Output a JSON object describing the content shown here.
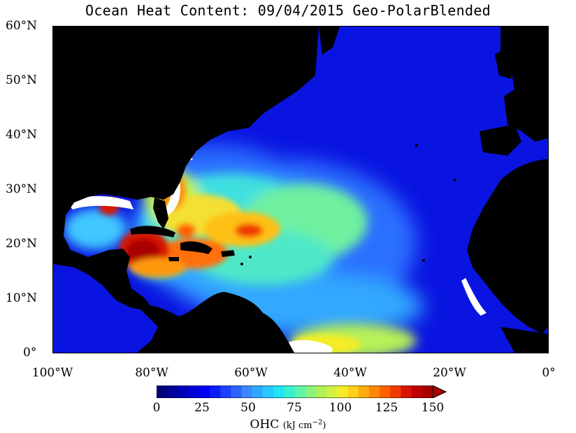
{
  "title": "Ocean Heat Content: 09/04/2015 Geo-PolarBlended",
  "lat_ticks": [
    "60°N",
    "50°N",
    "40°N",
    "30°N",
    "20°N",
    "10°N",
    "0°"
  ],
  "lon_ticks": [
    "100°W",
    "80°W",
    "60°W",
    "40°W",
    "20°W",
    "0°"
  ],
  "colorbar": {
    "ticks": [
      "0",
      "25",
      "50",
      "75",
      "100",
      "125",
      "150"
    ],
    "label": "OHC",
    "units_prefix": "(kJ cm",
    "units_exp": "−2",
    "units_suffix": ")",
    "range": [
      0,
      150
    ],
    "colors": [
      "#00007a",
      "#000098",
      "#0000b8",
      "#0000d8",
      "#0000f4",
      "#0c1cff",
      "#1c40ff",
      "#2c64ff",
      "#3c88ff",
      "#30a8ff",
      "#28c8ff",
      "#20e4f8",
      "#38f0d0",
      "#60f4a8",
      "#88f480",
      "#b0f058",
      "#d4f040",
      "#f4ec28",
      "#ffd018",
      "#ffac10",
      "#ff8808",
      "#ff6000",
      "#f03800",
      "#d81400",
      "#c00000",
      "#a80000"
    ]
  },
  "map": {
    "land_color": "#000000",
    "ocean_base_color": "#0a14e0",
    "nodata_color": "#ffffff"
  }
}
